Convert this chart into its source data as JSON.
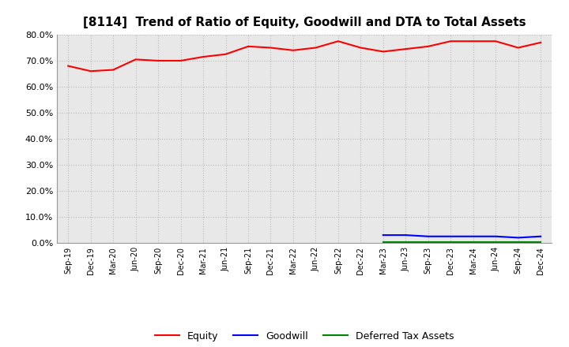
{
  "title": "[8114]  Trend of Ratio of Equity, Goodwill and DTA to Total Assets",
  "x_labels": [
    "Sep-19",
    "Dec-19",
    "Mar-20",
    "Jun-20",
    "Sep-20",
    "Dec-20",
    "Mar-21",
    "Jun-21",
    "Sep-21",
    "Dec-21",
    "Mar-22",
    "Jun-22",
    "Sep-22",
    "Dec-22",
    "Mar-23",
    "Jun-23",
    "Sep-23",
    "Dec-23",
    "Mar-24",
    "Jun-24",
    "Sep-24",
    "Dec-24"
  ],
  "equity": [
    68.0,
    66.0,
    66.5,
    70.5,
    70.0,
    70.0,
    71.5,
    72.5,
    75.5,
    75.0,
    74.0,
    75.0,
    77.5,
    75.0,
    73.5,
    74.5,
    75.5,
    77.5,
    77.5,
    77.5,
    75.0,
    77.0
  ],
  "goodwill": [
    null,
    null,
    null,
    null,
    null,
    null,
    null,
    null,
    null,
    null,
    null,
    null,
    null,
    null,
    3.0,
    3.0,
    2.5,
    2.5,
    2.5,
    2.5,
    2.0,
    2.5
  ],
  "dta": [
    null,
    null,
    null,
    null,
    null,
    null,
    null,
    null,
    null,
    null,
    null,
    null,
    null,
    null,
    0.3,
    0.3,
    0.3,
    0.3,
    0.3,
    0.3,
    0.3,
    0.3
  ],
  "equity_color": "#ff0000",
  "goodwill_color": "#0000ff",
  "dta_color": "#008000",
  "ylim": [
    0,
    80
  ],
  "yticks": [
    0,
    10,
    20,
    30,
    40,
    50,
    60,
    70,
    80
  ],
  "background_color": "#ffffff",
  "plot_bg_color": "#e8e8e8",
  "grid_color": "#aaaaaa",
  "title_fontsize": 11,
  "legend_labels": [
    "Equity",
    "Goodwill",
    "Deferred Tax Assets"
  ]
}
